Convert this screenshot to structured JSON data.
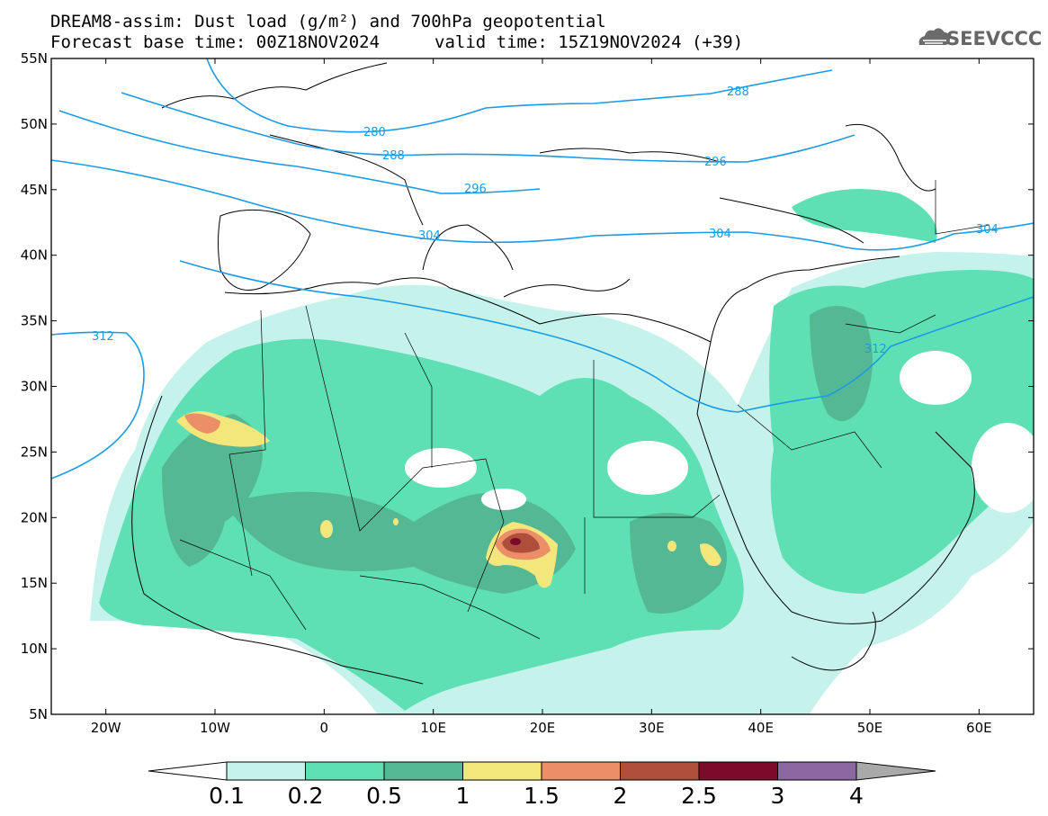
{
  "header": {
    "title_line1": "DREAM8-assim: Dust load (g/m²) and 700hPa geopotential",
    "title_line2_left": "Forecast base time: 00Z18NOV2024",
    "title_line2_right": "valid time: 15Z19NOV2024 (+39)"
  },
  "logo": {
    "text": "SEEVCCC",
    "icon": "cloud-icon"
  },
  "map": {
    "lat_labels": [
      "55N",
      "50N",
      "45N",
      "40N",
      "35N",
      "30N",
      "25N",
      "20N",
      "15N",
      "10N",
      "5N"
    ],
    "lon_labels": [
      "20W",
      "10W",
      "0",
      "10E",
      "20E",
      "30E",
      "40E",
      "50E",
      "60E"
    ],
    "lon_range": [
      -25,
      65
    ],
    "lat_range": [
      5,
      55
    ],
    "contour_labels": [
      "288",
      "280",
      "288",
      "296",
      "304",
      "304",
      "304",
      "312",
      "312",
      "296"
    ],
    "contour_color": "#1a9be6"
  },
  "colorbar": {
    "levels": [
      "0.1",
      "0.2",
      "0.5",
      "1",
      "1.5",
      "2",
      "2.5",
      "3",
      "4"
    ],
    "colors": [
      "#c6f2ec",
      "#5fe0b4",
      "#55b894",
      "#f3e77c",
      "#eb8f68",
      "#b04e3c",
      "#7d0a2a",
      "#8b68a0",
      "#a9a9a9"
    ]
  }
}
